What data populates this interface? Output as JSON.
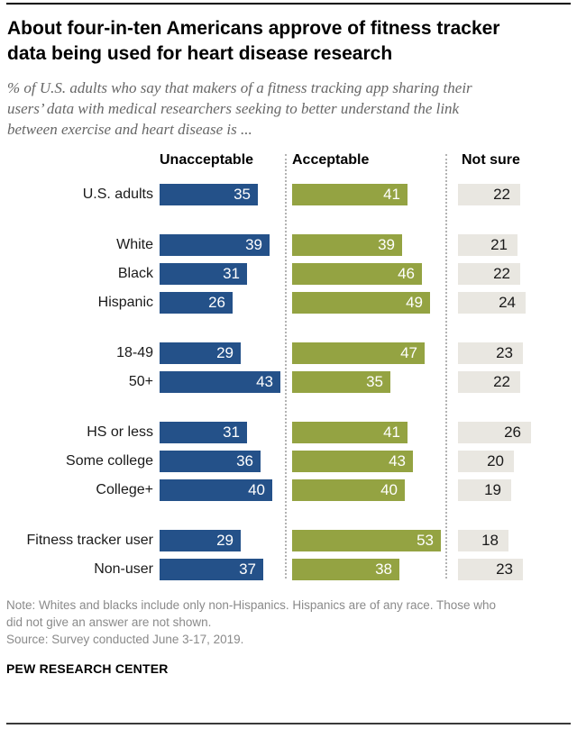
{
  "header": {
    "title_lines": [
      "About four-in-ten Americans approve of fitness tracker",
      "data being used for heart disease research"
    ],
    "subtitle_lines": [
      "% of U.S. adults who say that makers of a fitness tracking app sharing their",
      "users’ data with medical researchers seeking to better understand the link",
      "between exercise and heart disease is ..."
    ]
  },
  "chart_data": {
    "type": "bar",
    "orientation": "horizontal",
    "unit": "%",
    "title": "About four-in-ten Americans approve of fitness tracker data being used for heart disease research",
    "subtitle": "% of U.S. adults who say that makers of a fitness tracking app sharing their users’ data with medical researchers seeking to better understand the link between exercise and heart disease is ...",
    "series_labels": [
      "Unacceptable",
      "Acceptable",
      "Not sure"
    ],
    "xlim": [
      0,
      55
    ],
    "grid": false,
    "legend_position": "column-headers-top",
    "groups": [
      {
        "rows": [
          {
            "label": "U.S. adults",
            "values": [
              35,
              41,
              22
            ]
          }
        ]
      },
      {
        "rows": [
          {
            "label": "White",
            "values": [
              39,
              39,
              21
            ]
          },
          {
            "label": "Black",
            "values": [
              31,
              46,
              22
            ]
          },
          {
            "label": "Hispanic",
            "values": [
              26,
              49,
              24
            ]
          }
        ]
      },
      {
        "rows": [
          {
            "label": "18-49",
            "values": [
              29,
              47,
              23
            ]
          },
          {
            "label": "50+",
            "values": [
              43,
              35,
              22
            ]
          }
        ]
      },
      {
        "rows": [
          {
            "label": "HS or less",
            "values": [
              31,
              41,
              26
            ]
          },
          {
            "label": "Some college",
            "values": [
              36,
              43,
              20
            ]
          },
          {
            "label": "College+",
            "values": [
              40,
              40,
              19
            ]
          }
        ]
      },
      {
        "rows": [
          {
            "label": "Fitness tracker user",
            "values": [
              29,
              53,
              18
            ]
          },
          {
            "label": "Non-user",
            "values": [
              37,
              38,
              23
            ]
          }
        ]
      }
    ],
    "colors": {
      "unacceptable": "#245189",
      "acceptable": "#94a342",
      "not_sure": "#e9e7e1",
      "bar_value_light": "#ffffff",
      "bar_value_dark": "#1a1a1a"
    }
  },
  "footer": {
    "note_lines": [
      "Note: Whites and blacks include only non-Hispanics. Hispanics are of any race. Those who",
      "did not give an answer are not shown."
    ],
    "source": "Source: Survey conducted June 3-17, 2019.",
    "brand": "PEW RESEARCH CENTER"
  }
}
